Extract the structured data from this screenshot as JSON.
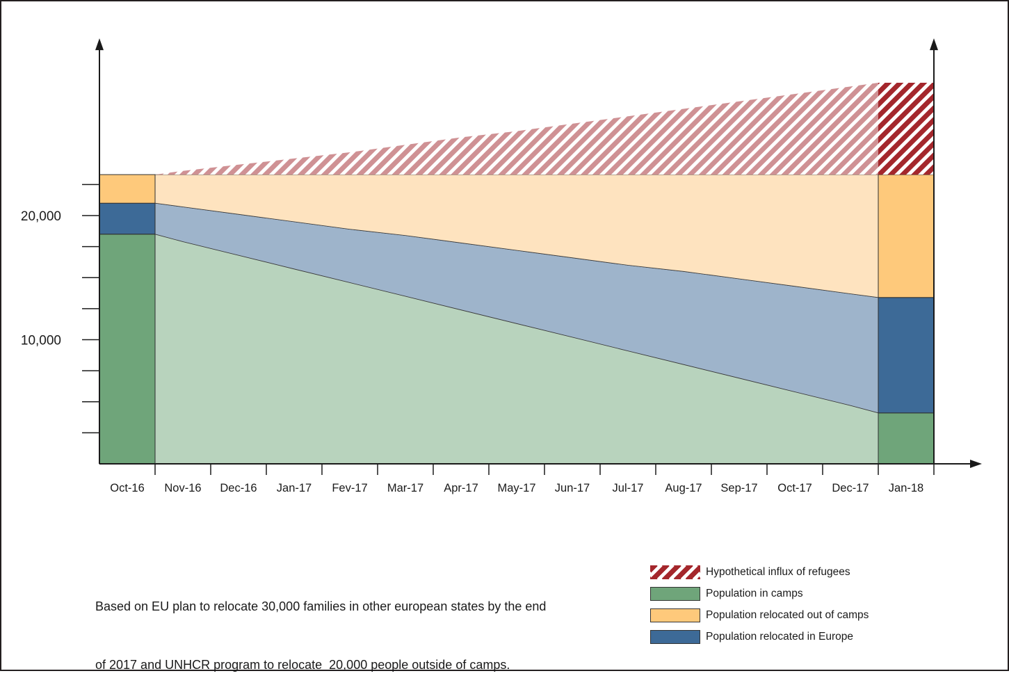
{
  "chart_data": {
    "type": "area",
    "stacked": true,
    "bars_at": [
      0,
      14
    ],
    "categories": [
      "Oct-16",
      "Nov-16",
      "Dec-16",
      "Jan-17",
      "Fev-17",
      "Mar-17",
      "Apr-17",
      "May-17",
      "Jun-17",
      "Jul-17",
      "Aug-17",
      "Sep-17",
      "Oct-17",
      "Dec-17",
      "Jan-18"
    ],
    "series": [
      {
        "name": "Population in camps",
        "color": "#6fa57a",
        "area_color": "#b8d3bd",
        "values": [
          18500,
          17900,
          16800,
          15700,
          14600,
          13500,
          12400,
          11300,
          10200,
          9100,
          8000,
          6900,
          5800,
          4700,
          4100
        ]
      },
      {
        "name": "Population relocated in Europe",
        "color": "#3d6a97",
        "area_color": "#9eb4cb",
        "values": [
          2500,
          2800,
          3300,
          3800,
          4300,
          4900,
          5400,
          5900,
          6400,
          6900,
          7500,
          8000,
          8500,
          9000,
          9300
        ]
      },
      {
        "name": "Population relocated out of camps",
        "color": "#fec97b",
        "area_color": "#fee3bf",
        "values": [
          2300,
          2600,
          3200,
          3800,
          4400,
          4900,
          5500,
          6100,
          6700,
          7300,
          7800,
          8400,
          9000,
          9600,
          9900
        ]
      },
      {
        "name": "Hypothetical influx of refugees",
        "color": "#a4272c",
        "area_color": "#cf9194",
        "hatched": true,
        "values": [
          0,
          300,
          800,
          1300,
          1800,
          2400,
          3000,
          3500,
          4100,
          4700,
          5300,
          5900,
          6500,
          7100,
          7400
        ]
      }
    ],
    "ylim": [
      0,
      34000
    ],
    "yticks": [
      2500,
      5000,
      7500,
      10000,
      12500,
      15000,
      17500,
      20000,
      22500
    ],
    "ytick_labels": [
      {
        "value": 20000,
        "label": "20,000"
      },
      {
        "value": 10000,
        "label": "10,000"
      }
    ],
    "grid": false,
    "legend": {
      "position": "bottom-right"
    }
  },
  "note": {
    "lines": [
      "Based on EU plan to relocate 30,000 families in other european states by the end",
      "of 2017 and UNHCR program to relocate  20,000 people outside of camps."
    ]
  }
}
